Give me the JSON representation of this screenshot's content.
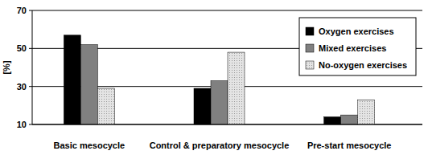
{
  "chart_data": {
    "type": "bar",
    "y_label": "[%]",
    "categories": [
      "Basic mesocycle",
      "Control & preparatory mesocycle",
      "Pre-start mesocycle"
    ],
    "series": [
      {
        "name": "Oxygen exercises",
        "color": "#000000",
        "values": [
          57,
          29,
          14
        ]
      },
      {
        "name": "Mixed exercises",
        "color": "#808080",
        "values": [
          52,
          33,
          15
        ]
      },
      {
        "name": "No-oxygen exercises",
        "color": "#e4e4e4",
        "values": [
          29,
          48,
          23
        ]
      }
    ],
    "ylim": [
      10,
      70
    ],
    "yticks": [
      10,
      30,
      50,
      70
    ],
    "grid": true,
    "legend": "upper right"
  }
}
